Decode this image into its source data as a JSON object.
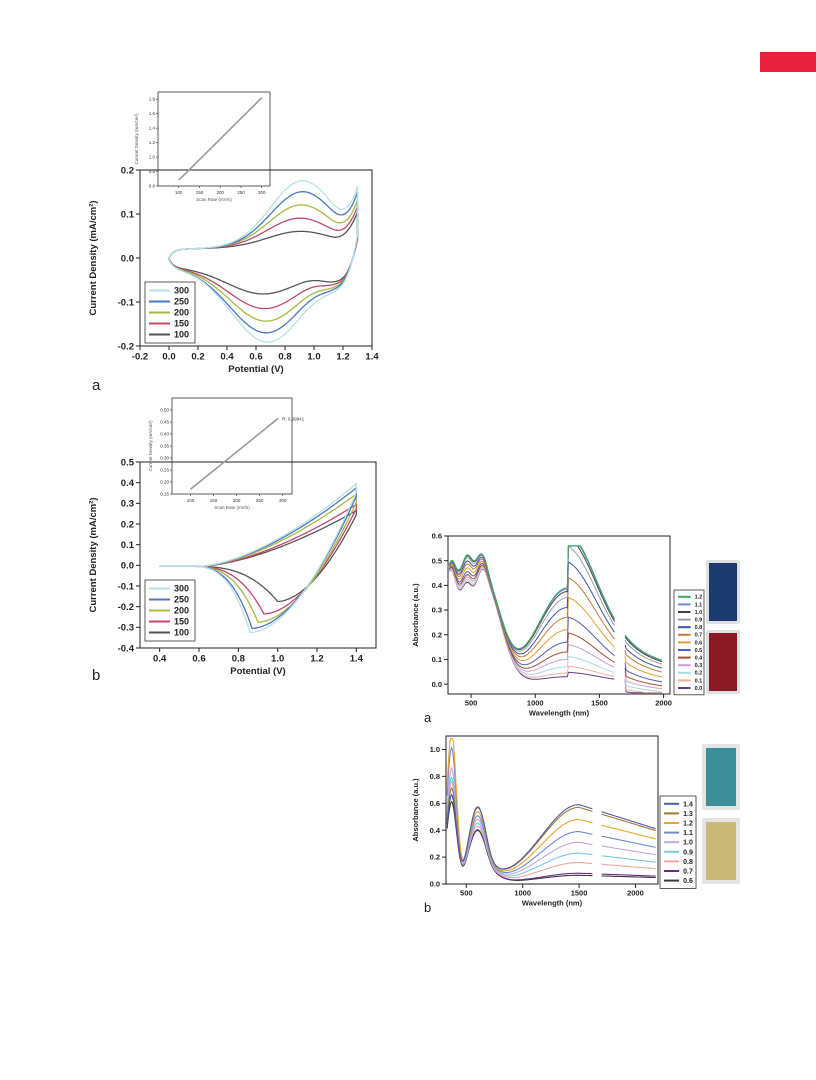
{
  "page": {
    "accent_color": "#e8213f"
  },
  "chart_data": [
    {
      "id": "cv_a",
      "type": "line",
      "panel_label": "a",
      "xlabel": "Potential (V)",
      "ylabel": "Current Density (mA/cm²)",
      "xlim": [
        -0.2,
        1.4
      ],
      "ylim": [
        -0.2,
        0.2
      ],
      "xticks": [
        -0.2,
        0,
        0.2,
        0.4,
        0.6,
        0.8,
        1.0,
        1.2,
        1.4
      ],
      "xtick_labels": [
        "-0.2",
        "0.0",
        "0.2",
        "0.4",
        "0.6",
        "0.8",
        "1.0",
        "1.2",
        "1.4"
      ],
      "yticks": [
        -0.2,
        -0.1,
        0,
        0.1,
        0.2
      ],
      "ytick_labels": [
        "-0.2",
        "-0.1",
        "0.0",
        "0.1",
        "0.2"
      ],
      "legend_placement": "bottom-left",
      "series": [
        {
          "name": "300",
          "color": "#b8e0e8",
          "peak_v": 0.92,
          "anodic_peak": 0.18,
          "cathodic_min": -0.18,
          "cathodic_v": 0.68,
          "end_up": 0.145,
          "end_low": 0.1
        },
        {
          "name": "250",
          "color": "#4a78c0",
          "peak_v": 0.92,
          "anodic_peak": 0.155,
          "cathodic_min": -0.158,
          "cathodic_v": 0.67,
          "end_up": 0.135,
          "end_low": 0.095
        },
        {
          "name": "200",
          "color": "#a8b840",
          "peak_v": 0.91,
          "anodic_peak": 0.125,
          "cathodic_min": -0.13,
          "cathodic_v": 0.67,
          "end_up": 0.12,
          "end_low": 0.09
        },
        {
          "name": "150",
          "color": "#c04a6a",
          "peak_v": 0.9,
          "anodic_peak": 0.095,
          "cathodic_min": -0.1,
          "cathodic_v": 0.66,
          "end_up": 0.11,
          "end_low": 0.085
        },
        {
          "name": "100",
          "color": "#555555",
          "peak_v": 0.9,
          "anodic_peak": 0.065,
          "cathodic_min": -0.065,
          "cathodic_v": 0.65,
          "end_up": 0.1,
          "end_low": 0.08
        }
      ],
      "inset": {
        "xlabel": "Scan Rate (mV/s)",
        "ylabel": "Current Density (mA/cm²)",
        "xlim": [
          50,
          320
        ],
        "ylim": [
          0.6,
          1.9
        ],
        "xticks": [
          100,
          150,
          200,
          250,
          300
        ],
        "yticks": [
          0.6,
          0.8,
          1.0,
          1.2,
          1.4,
          1.6,
          1.8
        ],
        "ytick_labels": [
          "0.6",
          "0.8",
          "1.0",
          "1.2",
          "1.4",
          "1.6",
          "1.8"
        ],
        "annotation": "",
        "line": {
          "x": [
            100,
            300
          ],
          "y": [
            0.68,
            1.82
          ]
        }
      }
    },
    {
      "id": "cv_b",
      "type": "line",
      "panel_label": "b",
      "xlabel": "Potential (V)",
      "ylabel": "Current Density (mA/cm²)",
      "xlim": [
        0.3,
        1.5
      ],
      "ylim": [
        -0.4,
        0.5
      ],
      "xticks": [
        0.4,
        0.6,
        0.8,
        1.0,
        1.2,
        1.4
      ],
      "xtick_labels": [
        "0.4",
        "0.6",
        "0.8",
        "1.0",
        "1.2",
        "1.4"
      ],
      "yticks": [
        -0.4,
        -0.3,
        -0.2,
        -0.1,
        0,
        0.1,
        0.2,
        0.3,
        0.4,
        0.5
      ],
      "ytick_labels": [
        "-0.4",
        "-0.3",
        "-0.2",
        "-0.1",
        "0.0",
        "0.1",
        "0.2",
        "0.3",
        "0.4",
        "0.5"
      ],
      "legend_placement": "bottom-left",
      "series": [
        {
          "name": "300",
          "color": "#b8e0e8",
          "end_up": 0.4,
          "cathodic_min": -0.32,
          "cathodic_v": 0.86,
          "end_low": 0.36
        },
        {
          "name": "250",
          "color": "#4a78c0",
          "end_up": 0.38,
          "cathodic_min": -0.3,
          "cathodic_v": 0.87,
          "end_low": 0.34
        },
        {
          "name": "200",
          "color": "#a8b840",
          "end_up": 0.35,
          "cathodic_min": -0.27,
          "cathodic_v": 0.9,
          "end_low": 0.31
        },
        {
          "name": "150",
          "color": "#c04a6a",
          "end_up": 0.3,
          "cathodic_min": -0.23,
          "cathodic_v": 0.93,
          "end_low": 0.28
        },
        {
          "name": "100",
          "color": "#555555",
          "end_up": 0.27,
          "cathodic_min": -0.17,
          "cathodic_v": 1.0,
          "end_low": 0.25
        }
      ],
      "inset": {
        "xlabel": "Scan Rate (mV/s)",
        "ylabel": "Current Density (mA/cm²)",
        "xlim": [
          60,
          320
        ],
        "ylim": [
          0.15,
          0.55
        ],
        "xticks": [
          100,
          150,
          200,
          250,
          300
        ],
        "yticks": [
          0.15,
          0.2,
          0.25,
          0.3,
          0.35,
          0.4,
          0.45,
          0.5
        ],
        "ytick_labels": [
          "0.15",
          "0.20",
          "0.25",
          "0.30",
          "0.35",
          "0.40",
          "0.45",
          "0.50"
        ],
        "annotation": "R: 0.99941",
        "line": {
          "x": [
            100,
            290
          ],
          "y": [
            0.17,
            0.465
          ]
        }
      }
    },
    {
      "id": "uv_a",
      "type": "line",
      "panel_label": "a",
      "xlabel": "Wavelength (nm)",
      "ylabel": "Absorbance (a.u.)",
      "xlim": [
        320,
        2050
      ],
      "ylim": [
        -0.04,
        0.6
      ],
      "xticks": [
        500,
        1000,
        1500,
        2000
      ],
      "xtick_labels": [
        "500",
        "1000",
        "1500",
        "2000"
      ],
      "yticks": [
        0,
        0.1,
        0.2,
        0.3,
        0.4,
        0.5,
        0.6
      ],
      "ytick_labels": [
        "0.0",
        "0.1",
        "0.2",
        "0.3",
        "0.4",
        "0.5",
        "0.6"
      ],
      "legend_placement": "right",
      "series": [
        {
          "name": "1.2",
          "color": "#3aa860",
          "v": 0.39
        },
        {
          "name": "1.1",
          "color": "#6a8ac8",
          "v": 0.385
        },
        {
          "name": "1.0",
          "color": "#444444",
          "v": 0.375
        },
        {
          "name": "0.9",
          "color": "#9aa0a8",
          "v": 0.35
        },
        {
          "name": "0.8",
          "color": "#3a50a8",
          "v": 0.31
        },
        {
          "name": "0.7",
          "color": "#c87a3a",
          "v": 0.27
        },
        {
          "name": "0.6",
          "color": "#e0a030",
          "v": 0.22
        },
        {
          "name": "0.5",
          "color": "#505ab8",
          "v": 0.17
        },
        {
          "name": "0.4",
          "color": "#a05030",
          "v": 0.13
        },
        {
          "name": "0.3",
          "color": "#c8a0d8",
          "v": 0.1
        },
        {
          "name": "0.2",
          "color": "#a8d8e8",
          "v": 0.07
        },
        {
          "name": "0.1",
          "color": "#f0b0a0",
          "v": 0.045
        },
        {
          "name": "0.0",
          "color": "#6a3a8a",
          "v": 0.03
        }
      ],
      "swatches": [
        {
          "name": "blue-cuvette-photo",
          "color": "#1c3a6e"
        },
        {
          "name": "red-cuvette-photo",
          "color": "#8a1a26"
        }
      ]
    },
    {
      "id": "uv_b",
      "type": "line",
      "panel_label": "b",
      "xlabel": "Wavelength (nm)",
      "ylabel": "Absorbance (a.u.)",
      "xlim": [
        320,
        2200
      ],
      "ylim": [
        0,
        1.1
      ],
      "xticks": [
        500,
        1000,
        1500,
        2000
      ],
      "xtick_labels": [
        "500",
        "1000",
        "1500",
        "2000"
      ],
      "yticks": [
        0,
        0.2,
        0.4,
        0.6,
        0.8,
        1.0
      ],
      "ytick_labels": [
        "0.0",
        "0.2",
        "0.4",
        "0.6",
        "0.8",
        "1.0"
      ],
      "legend_placement": "right",
      "series": [
        {
          "name": "1.4",
          "color": "#4a60a8",
          "v": 0.58,
          "uv": 0.55
        },
        {
          "name": "1.3",
          "color": "#a07838",
          "v": 0.56,
          "uv": 0.6
        },
        {
          "name": "1.2",
          "color": "#f0a030",
          "v": 0.47,
          "uv": 1.02
        },
        {
          "name": "1.1",
          "color": "#6a8ad8",
          "v": 0.38,
          "uv": 0.9
        },
        {
          "name": "1.0",
          "color": "#c0a8d8",
          "v": 0.3,
          "uv": 0.75
        },
        {
          "name": "0.9",
          "color": "#7ac8e8",
          "v": 0.22,
          "uv": 0.68
        },
        {
          "name": "0.8",
          "color": "#f0a898",
          "v": 0.15,
          "uv": 0.65
        },
        {
          "name": "0.7",
          "color": "#6a2a8a",
          "v": 0.07,
          "uv": 0.55
        },
        {
          "name": "0.6",
          "color": "#3a3a3a",
          "v": 0.055,
          "uv": 0.5
        }
      ],
      "swatches": [
        {
          "name": "teal-cuvette-photo",
          "color": "#3c8f98"
        },
        {
          "name": "yellow-cuvette-photo",
          "color": "#c9b876"
        }
      ]
    }
  ]
}
